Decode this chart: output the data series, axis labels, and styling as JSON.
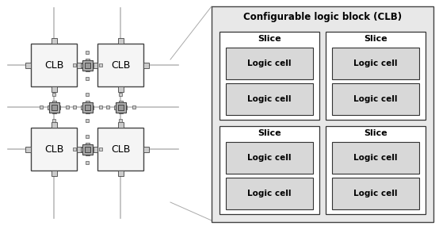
{
  "bg_color": "#ffffff",
  "clb_fc": "#f5f5f5",
  "clb_ec": "#444444",
  "switch_fc": "#b0b0b0",
  "switch_ec": "#444444",
  "arm_fc": "#cccccc",
  "arm_ec": "#555555",
  "right_panel_fc": "#e8e8e8",
  "right_panel_ec": "#444444",
  "slice_fc": "#ffffff",
  "slice_ec": "#333333",
  "logicell_fc": "#d8d8d8",
  "logicell_ec": "#333333",
  "title": "Configurable logic block (CLB)",
  "clb_label": "CLB",
  "slice_label": "Slice",
  "logic_label": "Logic cell",
  "title_fontsize": 8.5,
  "clb_fontsize": 9,
  "slice_fontsize": 8,
  "logic_fontsize": 7.5,
  "line_color": "#aaaaaa",
  "wire_color": "#bbbbbb",
  "wire_lw": 1.2
}
